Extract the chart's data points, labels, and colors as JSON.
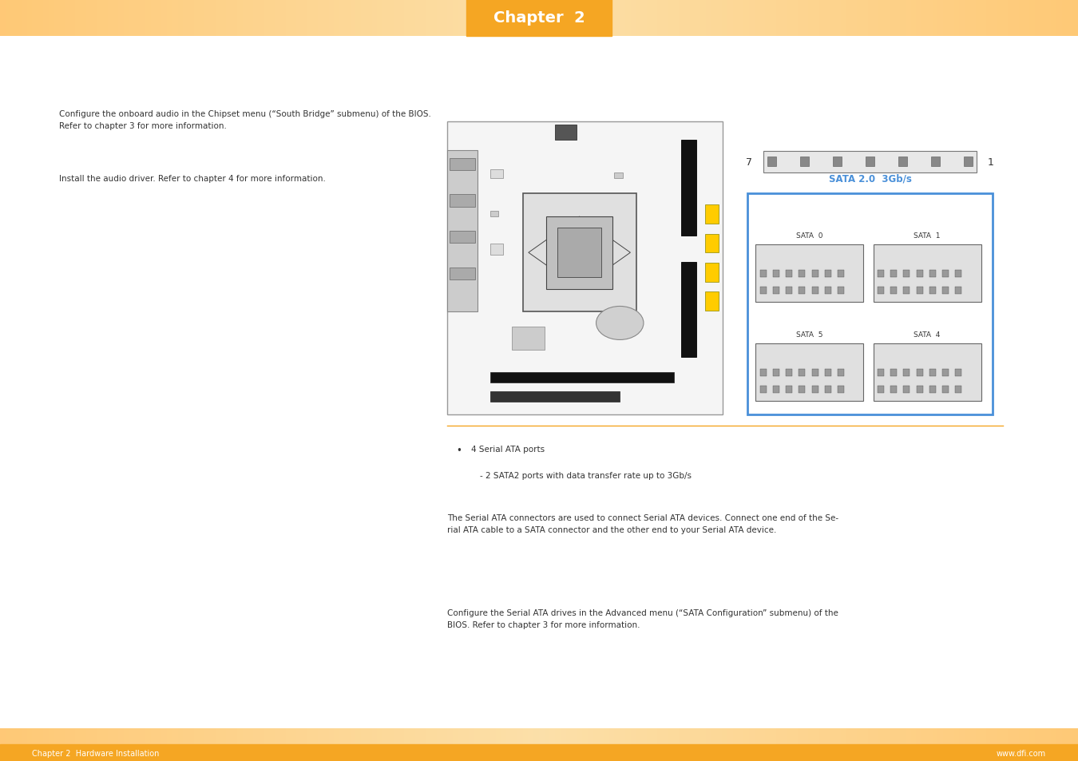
{
  "page_bg": "#ffffff",
  "header_bar_color": "#f5a623",
  "header_text": "Chapter  2",
  "header_text_color": "#ffffff",
  "footer_bar_color": "#f5a623",
  "footer_left_text": "Chapter 2  Hardware Installation",
  "footer_right_text": "www.dfi.com",
  "footer_text_color": "#ffffff",
  "header_gradient_color": "#fde0a8",
  "text_color": "#333333",
  "blue_box_color": "#4a90d9",
  "sata_label_color": "#4a90d9",
  "orange_accent": "#f5a623",
  "body_font_size": 7.5,
  "left_text_1": "Configure the onboard audio in the Chipset menu (“South Bridge” submenu) of the BIOS.\nRefer to chapter 3 for more information.",
  "left_text_2": "Install the audio driver. Refer to chapter 4 for more information.",
  "bullet_text_1": "4 Serial ATA ports",
  "bullet_text_2": "- 2 SATA2 ports with data transfer rate up to 3Gb/s",
  "body_text_1": "The Serial ATA connectors are used to connect Serial ATA devices. Connect one end of the Se-\nrial ATA cable to a SATA connector and the other end to your Serial ATA device.",
  "body_text_2": "Configure the Serial ATA drives in the Advanced menu (“SATA Configuration” submenu) of the\nBIOS. Refer to chapter 3 for more information.",
  "sata_label": "SATA 2.0  3Gb/s",
  "sata_ports": [
    "SATA  0",
    "SATA  1",
    "SATA  5",
    "SATA  4"
  ],
  "number_7": "7",
  "number_1": "1"
}
